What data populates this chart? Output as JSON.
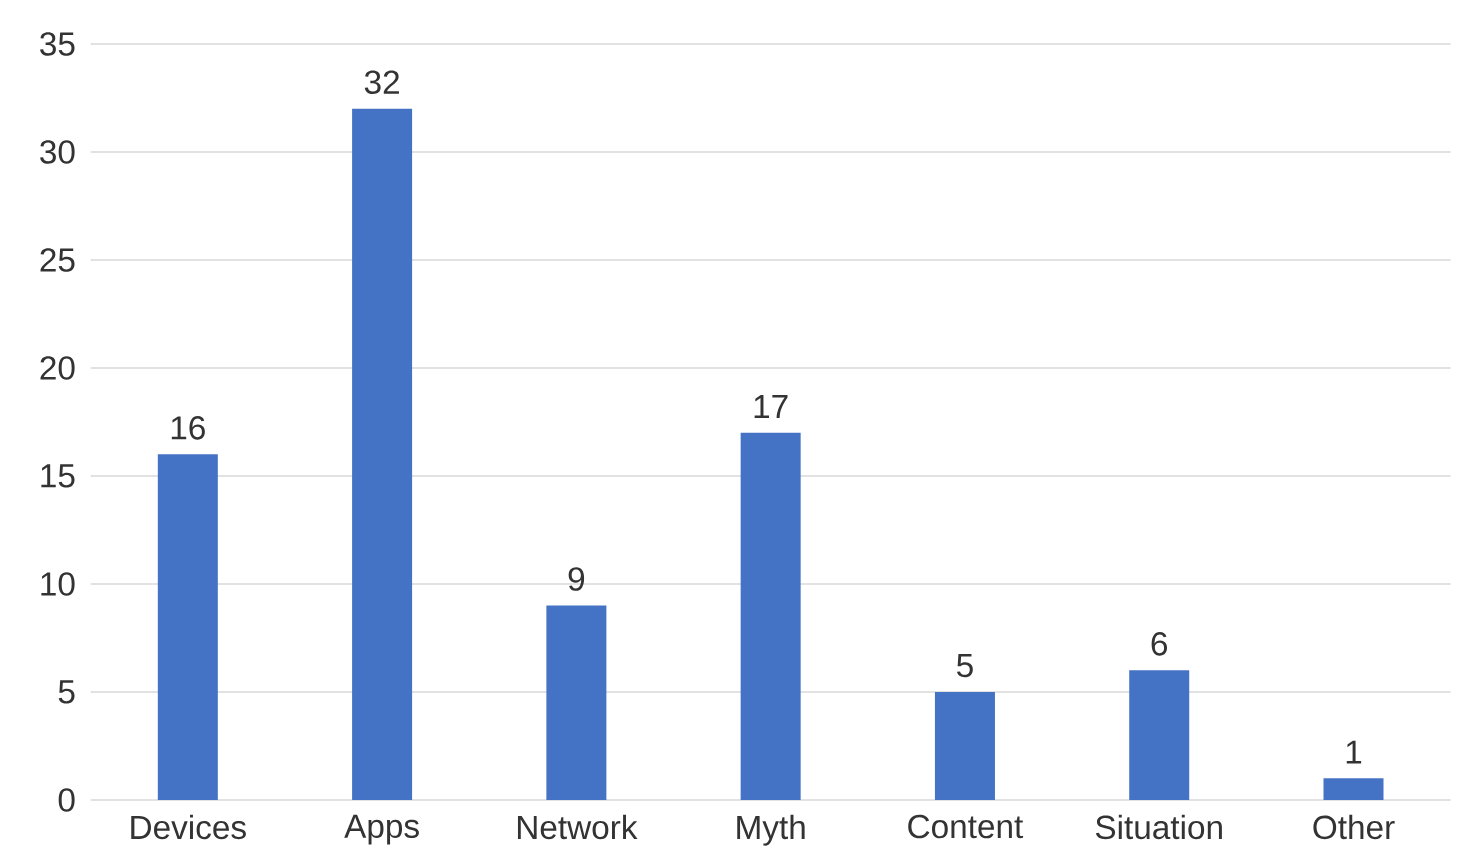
{
  "chart_data": {
    "type": "bar",
    "categories": [
      "Devices",
      "Apps",
      "Network",
      "Myth",
      "Content",
      "Situation",
      "Other"
    ],
    "values": [
      16,
      32,
      9,
      17,
      5,
      6,
      1
    ],
    "color": "#4472c4",
    "ylim": [
      0,
      35
    ],
    "yticks": [
      0,
      5,
      10,
      15,
      20,
      25,
      30,
      35
    ],
    "grid": "y",
    "data_labels": true
  }
}
